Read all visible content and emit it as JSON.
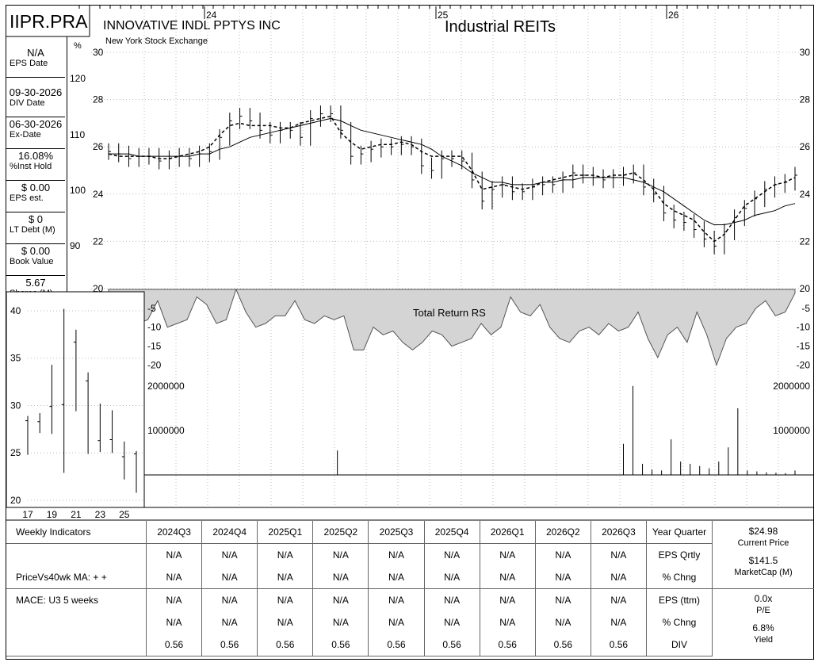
{
  "header": {
    "ticker": "IIPR.PRA",
    "company": "INNOVATIVE INDL PPTYS INC",
    "exchange": "New York Stock Exchange",
    "industry": "Industrial REITs",
    "pct_symbol": "%",
    "dollar_symbol": "$"
  },
  "sidebar": [
    {
      "value": "N/A",
      "label": "EPS Date"
    },
    {
      "value": "09-30-2026",
      "label": "DIV Date"
    },
    {
      "value": "06-30-2026",
      "label": "Ex-Date"
    },
    {
      "value": "16.08%",
      "label": "%Inst Hold"
    },
    {
      "value": "$ 0.00",
      "label": "EPS est."
    },
    {
      "value": "$ 0",
      "label": "LT Debt (M)"
    },
    {
      "value": "$ 0.00",
      "label": "Book Value"
    },
    {
      "value": "5.67",
      "label": "Shares (M)"
    }
  ],
  "chart_data": [
    {
      "type": "line",
      "title": "Industrial REITs",
      "x_year_labels": [
        "24",
        "25",
        "26"
      ],
      "price_axis_labels": [
        "30",
        "28",
        "26",
        "24",
        "22",
        "20"
      ],
      "pct_axis_labels": [
        "120",
        "110",
        "100",
        "90"
      ],
      "ylim": [
        20,
        30
      ],
      "series": [
        {
          "values": [
            25.8,
            25.7,
            25.5,
            25.6,
            25.6,
            25.4,
            25.5,
            25.6,
            25.5,
            25.7,
            25.8,
            26.4,
            27.1,
            27.3,
            27.1,
            26.7,
            26.5,
            26.7,
            26.7,
            26.4,
            27.2,
            27.4,
            27.4,
            26.7,
            25.6,
            25.7,
            25.9,
            26.0,
            26.0,
            26.1,
            26.0,
            25.2,
            25.0,
            25.5,
            25.5,
            25.4,
            24.6,
            23.7,
            24.2,
            24.4,
            24.1,
            24.1,
            24.3,
            24.4,
            24.4,
            24.6,
            24.9,
            24.8,
            24.7,
            24.6,
            24.7,
            24.8,
            24.9,
            24.3,
            24.0,
            23.2,
            22.9,
            22.8,
            22.5,
            22.1,
            21.8,
            22.4,
            23.0,
            23.4,
            23.8,
            24.2,
            24.4,
            24.5,
            24.8
          ]
        },
        {
          "values": [
            25.7,
            25.6,
            25.6,
            25.6,
            25.6,
            25.5,
            25.5,
            25.6,
            25.7,
            25.8,
            26.0,
            26.5,
            26.9,
            27.0,
            26.9,
            26.9,
            26.9,
            26.8,
            26.8,
            27.0,
            27.1,
            27.2,
            27.3,
            26.6,
            26.2,
            25.9,
            26.0,
            26.1,
            26.1,
            26.2,
            26.1,
            25.8,
            25.6,
            25.6,
            25.6,
            25.6,
            25.0,
            24.2,
            24.3,
            24.4,
            24.3,
            24.2,
            24.3,
            24.5,
            24.6,
            24.7,
            24.8,
            24.8,
            24.8,
            24.7,
            24.8,
            24.8,
            24.9,
            24.6,
            24.2,
            23.6,
            23.3,
            23.1,
            22.9,
            22.4,
            22.0,
            22.3,
            22.9,
            23.5,
            23.8,
            24.1,
            24.4,
            24.5,
            24.7
          ]
        },
        {
          "values": [
            25.7,
            25.7,
            25.7,
            25.6,
            25.6,
            25.6,
            25.6,
            25.6,
            25.6,
            25.7,
            25.7,
            25.9,
            26.0,
            26.2,
            26.4,
            26.5,
            26.6,
            26.7,
            26.8,
            26.9,
            27.0,
            27.1,
            27.2,
            27.1,
            26.9,
            26.7,
            26.6,
            26.5,
            26.4,
            26.3,
            26.2,
            26.1,
            25.9,
            25.6,
            25.4,
            25.2,
            24.9,
            24.7,
            24.5,
            24.5,
            24.4,
            24.4,
            24.4,
            24.5,
            24.5,
            24.6,
            24.6,
            24.7,
            24.7,
            24.7,
            24.7,
            24.7,
            24.6,
            24.5,
            24.3,
            24.1,
            23.8,
            23.5,
            23.2,
            22.9,
            22.7,
            22.7,
            22.8,
            22.9,
            23.1,
            23.2,
            23.3,
            23.5,
            23.6
          ]
        }
      ]
    },
    {
      "type": "area",
      "title": "Total Return RS",
      "axis_labels": [
        "-5",
        "-10",
        "-15",
        "-20"
      ],
      "ylim": [
        -22,
        0
      ],
      "values": [
        -2,
        -6,
        -8,
        -9,
        -8,
        -3,
        -10,
        -9,
        -8,
        -2,
        -4,
        -9,
        -8,
        0,
        -6,
        -10,
        -9,
        -7,
        -7,
        -3,
        -8,
        -9,
        -7,
        -8,
        -7,
        -16,
        -16,
        -10,
        -12,
        -11,
        -14,
        -16,
        -14,
        -11,
        -12,
        -15,
        -14,
        -13,
        -9,
        -12,
        -10,
        -2,
        -6,
        -7,
        -4,
        -10,
        -13,
        -14,
        -11,
        -10,
        -12,
        -9,
        -11,
        -10,
        -6,
        -13,
        -18,
        -12,
        -10,
        -14,
        -6,
        -12,
        -20,
        -13,
        -10,
        -9,
        -5,
        -3,
        -7,
        -6,
        -1
      ]
    },
    {
      "type": "bar",
      "title": "Volume",
      "axis_labels": [
        "2000000",
        "1000000"
      ],
      "ylim": [
        0,
        2300000
      ],
      "values": [
        0,
        0,
        0,
        0,
        0,
        0,
        0,
        0,
        0,
        0,
        0,
        0,
        0,
        0,
        0,
        0,
        0,
        0,
        0,
        0,
        0,
        0,
        0,
        0,
        550000,
        0,
        0,
        0,
        0,
        0,
        0,
        0,
        0,
        0,
        0,
        0,
        0,
        0,
        0,
        0,
        0,
        0,
        0,
        0,
        0,
        0,
        0,
        0,
        0,
        0,
        0,
        0,
        0,
        0,
        700000,
        2000000,
        250000,
        120000,
        100000,
        800000,
        300000,
        250000,
        200000,
        150000,
        300000,
        620000,
        1500000,
        100000,
        80000,
        60000,
        50000,
        40000,
        100000
      ]
    },
    {
      "type": "bar",
      "title": "Annual Price Range",
      "y_axis_labels": [
        "40",
        "35",
        "30",
        "25",
        "20"
      ],
      "x_axis_labels": [
        "17",
        "19",
        "21",
        "23",
        "25"
      ],
      "ylim": [
        20,
        41
      ],
      "ranges": [
        {
          "year": "17",
          "low": 24.8,
          "high": 28.9,
          "close": 28.4
        },
        {
          "year": "18",
          "low": 27.1,
          "high": 29.2,
          "close": 28.3
        },
        {
          "year": "19",
          "low": 27.0,
          "high": 34.3,
          "close": 29.9
        },
        {
          "year": "20",
          "low": 22.9,
          "high": 40.2,
          "close": 30.1
        },
        {
          "year": "21",
          "low": 29.4,
          "high": 38.0,
          "close": 36.7
        },
        {
          "year": "22",
          "low": 24.9,
          "high": 33.5,
          "close": 32.6
        },
        {
          "year": "23",
          "low": 25.1,
          "high": 30.2,
          "close": 26.3
        },
        {
          "year": "24",
          "low": 25.0,
          "high": 29.5,
          "close": 26.4
        },
        {
          "year": "25",
          "low": 22.2,
          "high": 26.2,
          "close": 24.6
        },
        {
          "year": "26",
          "low": 20.8,
          "high": 25.2,
          "close": 24.9
        }
      ]
    }
  ],
  "indicators": {
    "columns": [
      "2024Q3",
      "2024Q4",
      "2025Q1",
      "2025Q2",
      "2025Q3",
      "2025Q4",
      "2026Q1",
      "2026Q2",
      "2026Q3"
    ],
    "rows": [
      {
        "label": "Weekly Indicators",
        "values": [
          "2024Q3",
          "2024Q4",
          "2025Q1",
          "2025Q2",
          "2025Q3",
          "2025Q4",
          "2026Q1",
          "2026Q2",
          "2026Q3"
        ],
        "key": "Year Quarter"
      },
      {
        "label": "",
        "values": [
          "N/A",
          "N/A",
          "N/A",
          "N/A",
          "N/A",
          "N/A",
          "N/A",
          "N/A",
          "N/A"
        ],
        "key": "EPS Qrtly"
      },
      {
        "label": "PriceVs40wk MA:  + +",
        "values": [
          "N/A",
          "N/A",
          "N/A",
          "N/A",
          "N/A",
          "N/A",
          "N/A",
          "N/A",
          "N/A"
        ],
        "key": "% Chng"
      },
      {
        "label": "MACE: U3  5 weeks",
        "values": [
          "N/A",
          "N/A",
          "N/A",
          "N/A",
          "N/A",
          "N/A",
          "N/A",
          "N/A",
          "N/A"
        ],
        "key": "EPS (ttm)"
      },
      {
        "label": "",
        "values": [
          "N/A",
          "N/A",
          "N/A",
          "N/A",
          "N/A",
          "N/A",
          "N/A",
          "N/A",
          "N/A"
        ],
        "key": "% Chng"
      },
      {
        "label": "",
        "values": [
          "0.56",
          "0.56",
          "0.56",
          "0.56",
          "0.56",
          "0.56",
          "0.56",
          "0.56",
          "0.56"
        ],
        "key": "DIV"
      }
    ],
    "right": {
      "price": "$24.98",
      "price_label": "Current Price",
      "mcap": "$141.5",
      "mcap_label": "MarketCap (M)",
      "pe": "0.0x",
      "pe_label": "P/E",
      "yield": "6.8%",
      "yield_label": "Yield"
    }
  }
}
